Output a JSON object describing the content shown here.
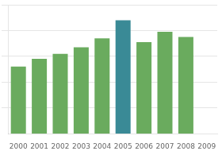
{
  "chart_data": {
    "type": "bar",
    "categories": [
      "2000",
      "2001",
      "2002",
      "2003",
      "2004",
      "2005",
      "2006",
      "2007",
      "2008",
      "2009"
    ],
    "values": [
      52,
      58,
      62,
      67,
      74,
      88,
      71,
      79,
      75,
      0
    ],
    "colors": [
      "#6aab5e",
      "#6aab5e",
      "#6aab5e",
      "#6aab5e",
      "#6aab5e",
      "#3a8a96",
      "#6aab5e",
      "#6aab5e",
      "#6aab5e",
      "#6aab5e"
    ],
    "ylim": [
      0,
      100
    ],
    "yticks": [
      20,
      40,
      60,
      80,
      100
    ],
    "grid": true,
    "tick_labels": "x"
  }
}
